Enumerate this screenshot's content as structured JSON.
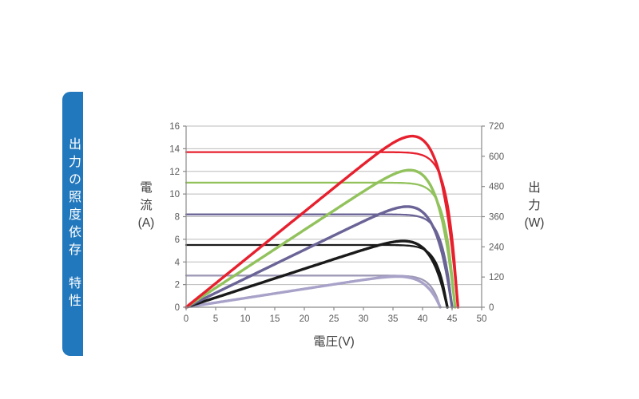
{
  "sidebar": {
    "tab_label_line1": "出力の照度依存",
    "tab_label_line2": "特性",
    "tab_color": "#2278bd",
    "text_color": "#ffffff"
  },
  "chart_data": {
    "type": "line",
    "title": "",
    "xlabel": "電圧(V)",
    "ylabel_left": "電流(A)",
    "ylabel_right": "出力(W)",
    "x_axis": {
      "min": 0,
      "max": 50,
      "tick_step": 5,
      "ticks": [
        0,
        5,
        10,
        15,
        20,
        25,
        30,
        35,
        40,
        45,
        50
      ]
    },
    "y_left": {
      "min": 0,
      "max": 16,
      "tick_step": 2,
      "ticks": [
        0,
        2,
        4,
        6,
        8,
        10,
        12,
        14,
        16
      ]
    },
    "y_right": {
      "min": 0,
      "max": 720,
      "tick_step": 120,
      "ticks": [
        0,
        120,
        240,
        360,
        480,
        600,
        720
      ]
    },
    "grid": "horizontal-only",
    "legend": "none",
    "axis_color": "#8a8a8a",
    "grid_color": "#bbbbbb",
    "series": [
      {
        "name": "red",
        "color": "#e7202e",
        "iv_curve": {
          "isc_a": 13.7,
          "voc_v": 46.0
        },
        "pv_curve": {
          "pmax_w": 680,
          "vmp_v": 38
        }
      },
      {
        "name": "green",
        "color": "#92c25c",
        "iv_curve": {
          "isc_a": 11.0,
          "voc_v": 45.5
        },
        "pv_curve": {
          "pmax_w": 545,
          "vmp_v": 38
        }
      },
      {
        "name": "purple",
        "color": "#6a6396",
        "iv_curve": {
          "isc_a": 8.2,
          "voc_v": 45.0
        },
        "pv_curve": {
          "pmax_w": 400,
          "vmp_v": 38
        }
      },
      {
        "name": "black",
        "color": "#1a1a1a",
        "iv_curve": {
          "isc_a": 5.5,
          "voc_v": 44.2
        },
        "pv_curve": {
          "pmax_w": 263,
          "vmp_v": 38
        }
      },
      {
        "name": "light-purple",
        "color": "#a8a2c9",
        "iv_color": "#9e99b5",
        "iv_curve": {
          "isc_a": 2.8,
          "voc_v": 43.0
        },
        "pv_curve": {
          "pmax_w": 122,
          "vmp_v": 37
        }
      }
    ]
  }
}
